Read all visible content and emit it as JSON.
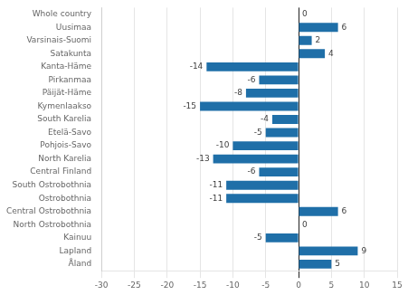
{
  "chart_data": {
    "type": "bar",
    "orientation": "horizontal",
    "categories": [
      "Whole country",
      "Uusimaa",
      "Varsinais-Suomi",
      "Satakunta",
      "Kanta-Häme",
      "Pirkanmaa",
      "Päijät-Häme",
      "Kymenlaakso",
      "South Karelia",
      "Etelä-Savo",
      "Pohjois-Savo",
      "North Karelia",
      "Central Finland",
      "South Ostrobothnia",
      "Ostrobothnia",
      "Central Ostrobothnia",
      "North Ostrobothnia",
      "Kainuu",
      "Lapland",
      "Åland"
    ],
    "values": [
      0,
      6,
      2,
      4,
      -14,
      -6,
      -8,
      -15,
      -4,
      -5,
      -10,
      -13,
      -6,
      -11,
      -11,
      6,
      0,
      -5,
      9,
      5
    ],
    "color": "#1f6fa8",
    "xlim": [
      -30,
      15
    ],
    "xticks": [
      -30,
      -25,
      -20,
      -15,
      -10,
      -5,
      0,
      5,
      10,
      15
    ],
    "grid": true,
    "data_labels": true
  }
}
